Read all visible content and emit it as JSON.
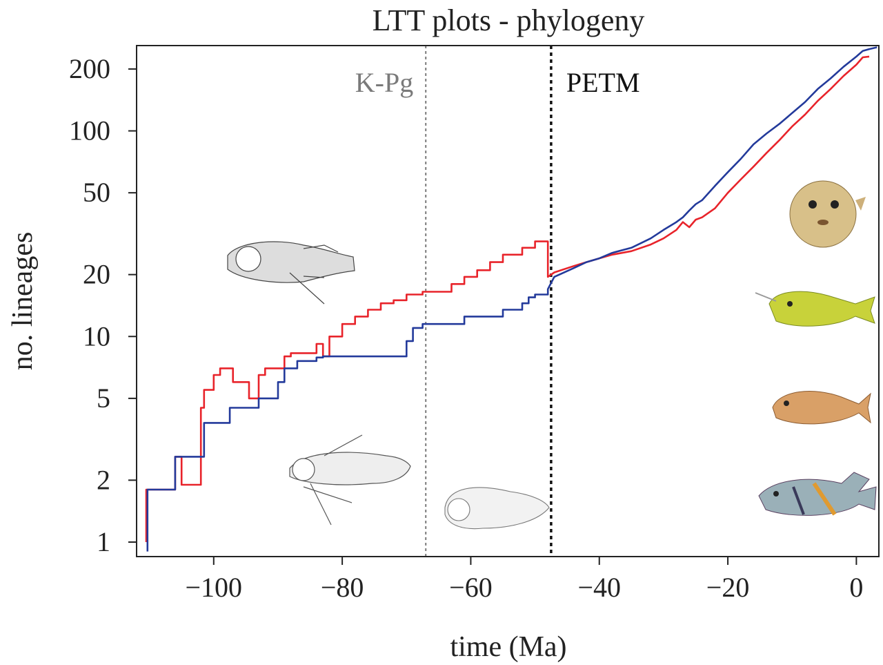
{
  "chart_data": {
    "type": "line",
    "title": "LTT plots - phylogeny",
    "xlabel": "time (Ma)",
    "ylabel": "no. lineages",
    "xlim": [
      -112,
      3.5
    ],
    "ylim": [
      0.85,
      260
    ],
    "y_scale": "log",
    "x_ticks": [
      -100,
      -80,
      -60,
      -40,
      -20,
      0
    ],
    "x_tick_labels": [
      "−100",
      "−80",
      "−60",
      "−40",
      "−20",
      "0"
    ],
    "y_ticks": [
      1,
      2,
      5,
      10,
      20,
      50,
      100,
      200
    ],
    "y_tick_labels": [
      "1",
      "2",
      "5",
      "10",
      "20",
      "50",
      "100",
      "200"
    ],
    "grid": false,
    "legend": "none",
    "series": [
      {
        "color": "#e8232a",
        "x": [
          -110.5,
          -110.5,
          -106,
          -106,
          -105,
          -105,
          -102,
          -102,
          -101.5,
          -101.5,
          -100,
          -100,
          -99,
          -99,
          -97,
          -97,
          -94.5,
          -94.5,
          -93,
          -93,
          -92,
          -92,
          -89,
          -89,
          -88,
          -88,
          -84,
          -84,
          -83,
          -83,
          -82,
          -82,
          -80,
          -80,
          -78,
          -78,
          -76,
          -76,
          -74,
          -74,
          -72,
          -72,
          -70,
          -70,
          -67.5,
          -67.5,
          -63,
          -63,
          -61,
          -61,
          -59,
          -59,
          -57,
          -57,
          -55,
          -55,
          -52,
          -52,
          -50,
          -50,
          -48,
          -48,
          -47,
          -44,
          -42,
          -40,
          -38,
          -35,
          -32,
          -30,
          -28,
          -27,
          -26,
          -25,
          -24,
          -22,
          -20,
          -18,
          -16,
          -14,
          -12,
          -10,
          -8,
          -6,
          -4,
          -2,
          0,
          1,
          2
        ],
        "y": [
          1,
          1.8,
          1.8,
          2.6,
          2.6,
          1.9,
          1.9,
          4.5,
          4.5,
          5.5,
          5.5,
          6.5,
          6.5,
          7,
          7,
          6,
          6,
          5,
          5,
          6.5,
          6.5,
          7,
          7,
          8,
          8,
          8.3,
          8.3,
          9.2,
          9.2,
          8,
          8,
          10,
          10,
          11.5,
          11.5,
          12.5,
          12.5,
          13.5,
          13.5,
          14.5,
          14.5,
          15,
          15,
          16,
          16,
          16.5,
          16.5,
          18,
          18,
          19.5,
          19.5,
          21,
          21,
          23,
          23,
          25,
          25,
          27,
          27,
          29,
          29,
          19.5,
          20.5,
          22,
          23,
          24,
          25,
          26,
          28,
          30,
          33,
          36,
          34,
          37,
          38,
          42,
          50,
          58,
          67,
          78,
          90,
          105,
          120,
          140,
          160,
          185,
          210,
          228,
          230
        ]
      },
      {
        "color": "#233a9b",
        "x": [
          -110.3,
          -110.3,
          -106,
          -106,
          -101.5,
          -101.5,
          -97.5,
          -97.5,
          -93,
          -93,
          -90,
          -90,
          -89,
          -89,
          -87,
          -87,
          -84,
          -84,
          -83,
          -83,
          -70,
          -70,
          -69,
          -69,
          -67.5,
          -67.5,
          -61,
          -61,
          -55,
          -55,
          -52,
          -52,
          -51,
          -51,
          -50,
          -50,
          -48,
          -48,
          -47,
          -44,
          -42,
          -40,
          -38,
          -35,
          -32,
          -30,
          -28,
          -27,
          -26,
          -25,
          -24,
          -22,
          -20,
          -18,
          -16,
          -14,
          -12,
          -10,
          -8,
          -6,
          -4,
          -2,
          0,
          1,
          2,
          3.2
        ],
        "y": [
          0.9,
          1.8,
          1.8,
          2.6,
          2.6,
          3.8,
          3.8,
          4.5,
          4.5,
          5,
          5,
          6,
          6,
          7,
          7,
          7.6,
          7.6,
          7.9,
          7.9,
          8,
          8,
          9.5,
          9.5,
          11,
          11,
          11.5,
          11.5,
          12.5,
          12.5,
          13.5,
          13.5,
          14.5,
          14.5,
          15.5,
          15.5,
          16,
          16,
          17,
          19.5,
          21.5,
          23,
          24,
          25.5,
          27,
          30,
          33,
          36,
          38,
          41,
          44,
          46,
          54,
          63,
          73,
          86,
          97,
          108,
          122,
          138,
          160,
          180,
          205,
          230,
          245,
          250,
          255
        ]
      }
    ],
    "vlines": [
      {
        "x": -67,
        "color": "#7a7a7a",
        "style": "dotted",
        "label": "K-Pg"
      },
      {
        "x": -47.5,
        "color": "#111111",
        "style": "dotted",
        "label": "PETM"
      }
    ]
  }
}
